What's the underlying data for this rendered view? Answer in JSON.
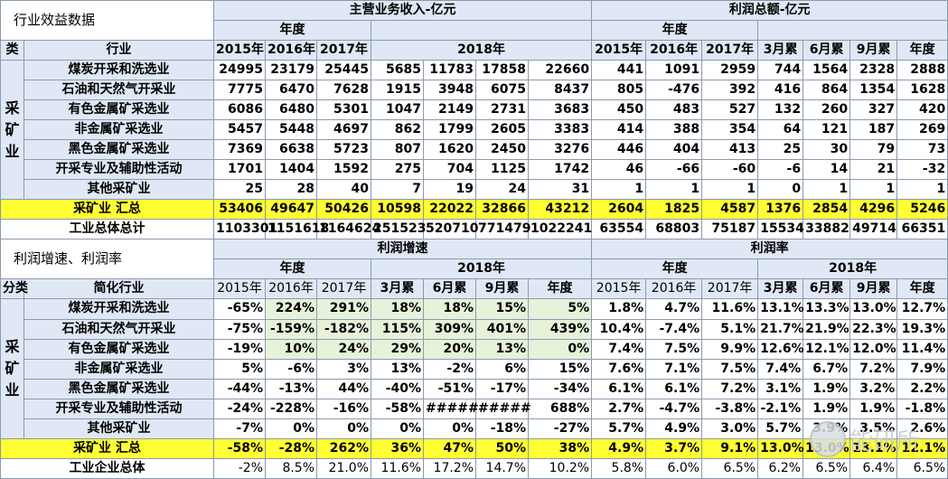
{
  "section1": {
    "title": "行业效益数据",
    "group_revenue": "主营业务收入-亿元",
    "group_profit": "利润总额-亿元",
    "sub_annual": "年度",
    "sub_2018": "2018年",
    "col_cat": "类",
    "col_ind": "行业",
    "years": [
      "2015年",
      "2016年",
      "2017年"
    ],
    "quarters": [
      "3月累",
      "6月累",
      "9月累",
      "年度"
    ],
    "category": "采矿业",
    "rows": [
      {
        "name": "煤炭开采和洗选业",
        "rev": [
          "24995",
          "23179",
          "25445",
          "5685",
          "11783",
          "17858",
          "22660"
        ],
        "prof": [
          "441",
          "1091",
          "2959",
          "744",
          "1564",
          "2328",
          "2888"
        ]
      },
      {
        "name": "石油和天然气开采业",
        "rev": [
          "7775",
          "6470",
          "7628",
          "1915",
          "3948",
          "6075",
          "8437"
        ],
        "prof": [
          "805",
          "-476",
          "392",
          "416",
          "864",
          "1354",
          "1628"
        ]
      },
      {
        "name": "有色金属矿采选业",
        "rev": [
          "6086",
          "6480",
          "5301",
          "1047",
          "2149",
          "2731",
          "3683"
        ],
        "prof": [
          "450",
          "483",
          "527",
          "132",
          "260",
          "327",
          "420"
        ]
      },
      {
        "name": "非金属矿采选业",
        "rev": [
          "5457",
          "5448",
          "4697",
          "862",
          "1799",
          "2605",
          "3383"
        ],
        "prof": [
          "414",
          "388",
          "354",
          "64",
          "121",
          "187",
          "269"
        ]
      },
      {
        "name": "黑色金属矿采选业",
        "rev": [
          "7369",
          "6638",
          "5723",
          "807",
          "1620",
          "2450",
          "3276"
        ],
        "prof": [
          "446",
          "404",
          "413",
          "25",
          "30",
          "79",
          "73"
        ]
      },
      {
        "name": "开采专业及辅助性活动",
        "rev": [
          "1701",
          "1404",
          "1592",
          "275",
          "704",
          "1125",
          "1742"
        ],
        "prof": [
          "46",
          "-66",
          "-60",
          "-6",
          "14",
          "21",
          "-32"
        ]
      },
      {
        "name": "其他采矿业",
        "rev": [
          "25",
          "28",
          "40",
          "7",
          "19",
          "24",
          "31"
        ],
        "prof": [
          "1",
          "1",
          "1",
          "0",
          "1",
          "1",
          "1"
        ]
      }
    ],
    "total": {
      "name": "采矿业 汇总",
      "rev": [
        "53406",
        "49647",
        "50426",
        "10598",
        "22022",
        "32866",
        "43212"
      ],
      "prof": [
        "2604",
        "1825",
        "4587",
        "1376",
        "2854",
        "4296",
        "5246"
      ]
    },
    "industry": {
      "name": "工业总体总计",
      "rev": [
        "1103301",
        "1151618",
        "1164624",
        "251523",
        "520710",
        "771479",
        "1022241"
      ],
      "prof": [
        "63554",
        "68803",
        "75187",
        "15534",
        "33882",
        "49714",
        "66351"
      ]
    }
  },
  "section2": {
    "title": "利润增速、利润率",
    "group_growth": "利润增速",
    "group_margin": "利润率",
    "sub_annual": "年度",
    "sub_2018": "2018年",
    "col_cat": "分类",
    "col_ind": "简化行业",
    "years": [
      "2015年",
      "2016年",
      "2017年"
    ],
    "quarters": [
      "3月累",
      "6月累",
      "9月累",
      "年度"
    ],
    "category": "采矿业",
    "rows": [
      {
        "name": "煤炭开采和洗选业",
        "growth": [
          "-65%",
          "224%",
          "291%",
          "18%",
          "18%",
          "15%",
          "5%"
        ],
        "margin": [
          "1.8%",
          "4.7%",
          "11.6%",
          "13.1%",
          "13.3%",
          "13.0%",
          "12.7%"
        ]
      },
      {
        "name": "石油和天然气开采业",
        "growth": [
          "-75%",
          "-159%",
          "-182%",
          "115%",
          "309%",
          "401%",
          "439%"
        ],
        "margin": [
          "10.4%",
          "-7.4%",
          "5.1%",
          "21.7%",
          "21.9%",
          "22.3%",
          "19.3%"
        ]
      },
      {
        "name": "有色金属矿采选业",
        "growth": [
          "-19%",
          "10%",
          "24%",
          "29%",
          "20%",
          "13%",
          "0%"
        ],
        "margin": [
          "7.4%",
          "7.5%",
          "9.9%",
          "12.6%",
          "12.1%",
          "12.0%",
          "11.4%"
        ]
      },
      {
        "name": "非金属矿采选业",
        "growth": [
          "5%",
          "-6%",
          "3%",
          "13%",
          "-2%",
          "6%",
          "15%"
        ],
        "margin": [
          "7.6%",
          "7.1%",
          "7.5%",
          "7.4%",
          "6.7%",
          "7.2%",
          "7.9%"
        ]
      },
      {
        "name": "黑色金属矿采选业",
        "growth": [
          "-44%",
          "-13%",
          "44%",
          "-40%",
          "-51%",
          "-17%",
          "-34%"
        ],
        "margin": [
          "6.1%",
          "6.1%",
          "7.2%",
          "3.1%",
          "1.9%",
          "3.2%",
          "2.2%"
        ]
      },
      {
        "name": "开采专业及辅助性活动",
        "growth": [
          "-24%",
          "-228%",
          "-16%",
          "-58%",
          "#####",
          "#####",
          "688%"
        ],
        "margin": [
          "2.7%",
          "-4.7%",
          "-3.8%",
          "-2.1%",
          "1.9%",
          "1.9%",
          "-1.8%"
        ]
      },
      {
        "name": "其他采矿业",
        "growth": [
          "-7%",
          "0%",
          "0%",
          "0%",
          "0%",
          "-18%",
          "-27%"
        ],
        "margin": [
          "5.7%",
          "4.9%",
          "3.0%",
          "5.7%",
          "3.9%",
          "3.5%",
          "2.6%"
        ]
      }
    ],
    "total": {
      "name": "采矿业 汇总",
      "growth": [
        "-58%",
        "-28%",
        "262%",
        "36%",
        "47%",
        "50%",
        "38%"
      ],
      "margin": [
        "4.9%",
        "3.7%",
        "9.1%",
        "13.0%",
        "13.0%",
        "13.1%",
        "12.1%"
      ]
    },
    "industry": {
      "name": "工业企业总体",
      "growth": [
        "-2%",
        "8.5%",
        "21.0%",
        "11.6%",
        "17.2%",
        "14.7%",
        "10.2%"
      ],
      "margin": [
        "5.8%",
        "6.0%",
        "6.5%",
        "6.2%",
        "6.5%",
        "6.4%",
        "6.5%"
      ]
    }
  },
  "watermark": "能研所"
}
